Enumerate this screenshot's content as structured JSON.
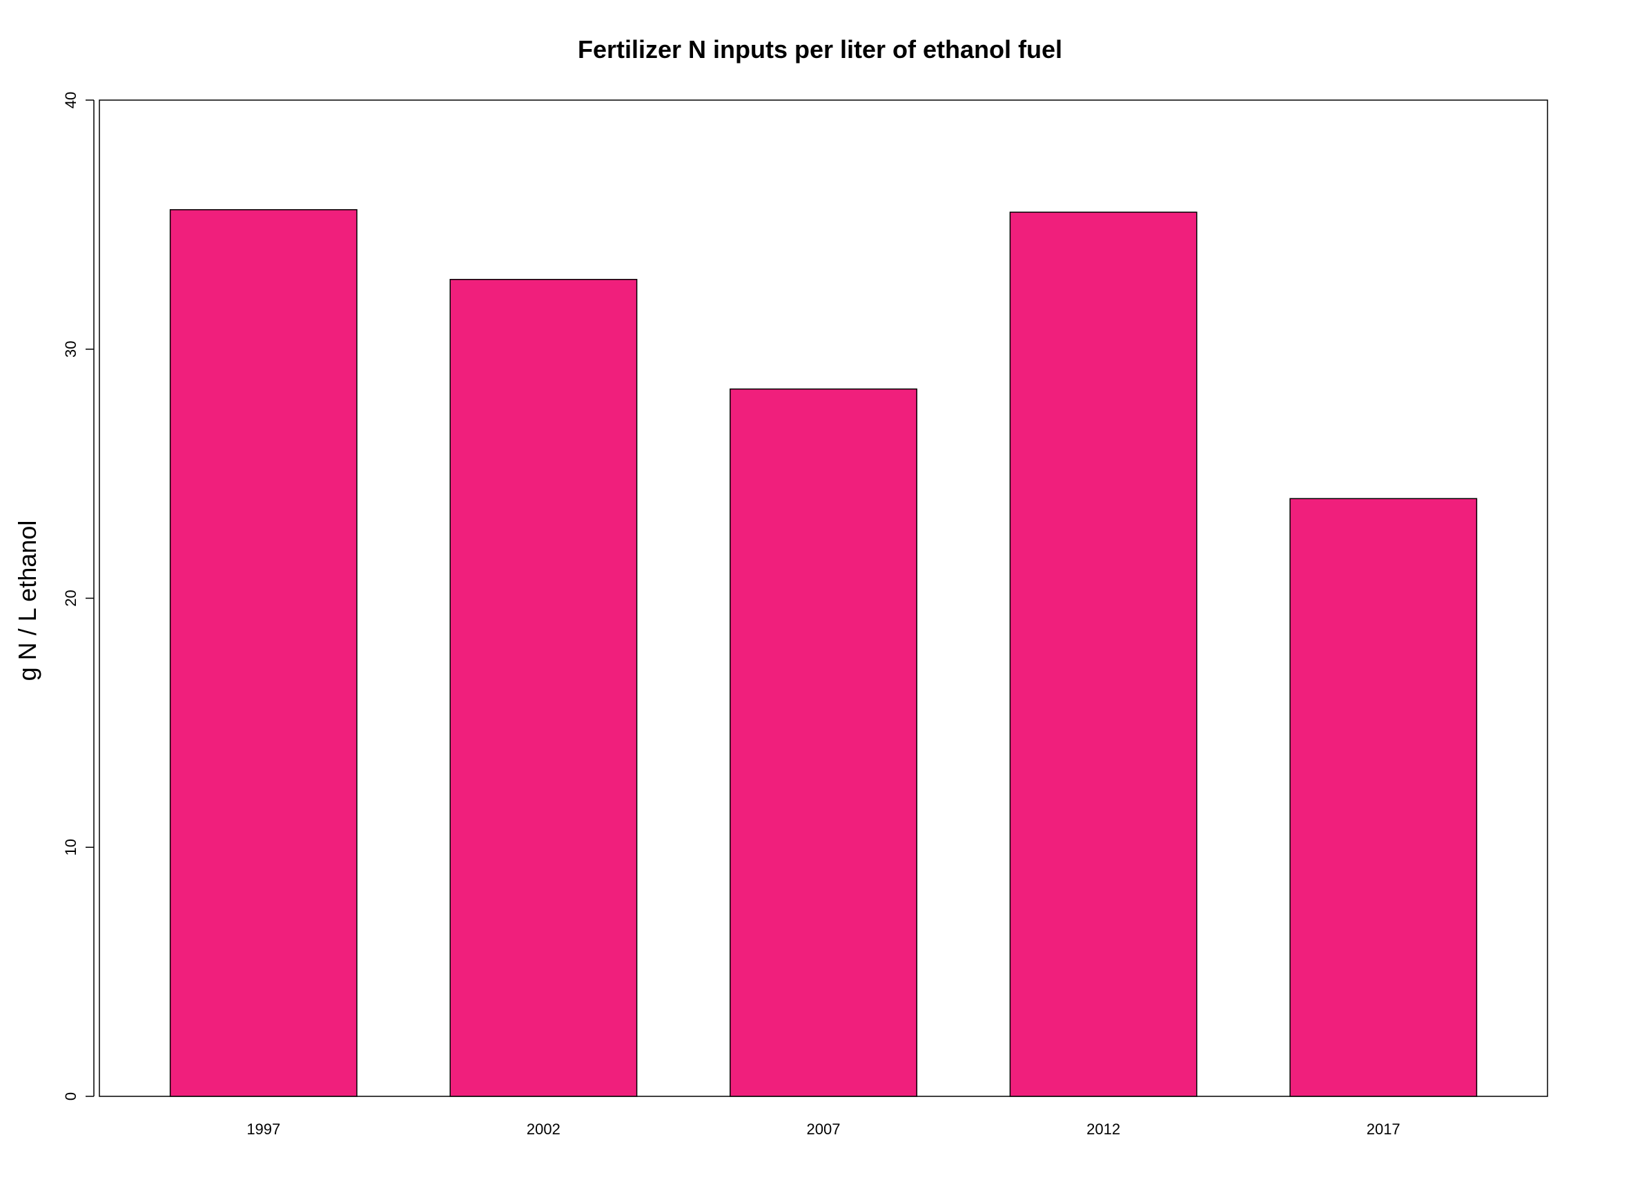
{
  "chart_data": {
    "type": "bar",
    "title": "Fertilizer N inputs per liter of ethanol fuel",
    "xlabel": "",
    "ylabel": "g N / L ethanol",
    "categories": [
      "1997",
      "2002",
      "2007",
      "2012",
      "2017"
    ],
    "values": [
      35.6,
      32.8,
      28.4,
      35.5,
      24.0
    ],
    "ylim": [
      0,
      40
    ],
    "yticks": [
      "0",
      "10",
      "20",
      "30",
      "40"
    ],
    "bar_color": "#F01F7C",
    "grid": false,
    "legend": "none"
  }
}
